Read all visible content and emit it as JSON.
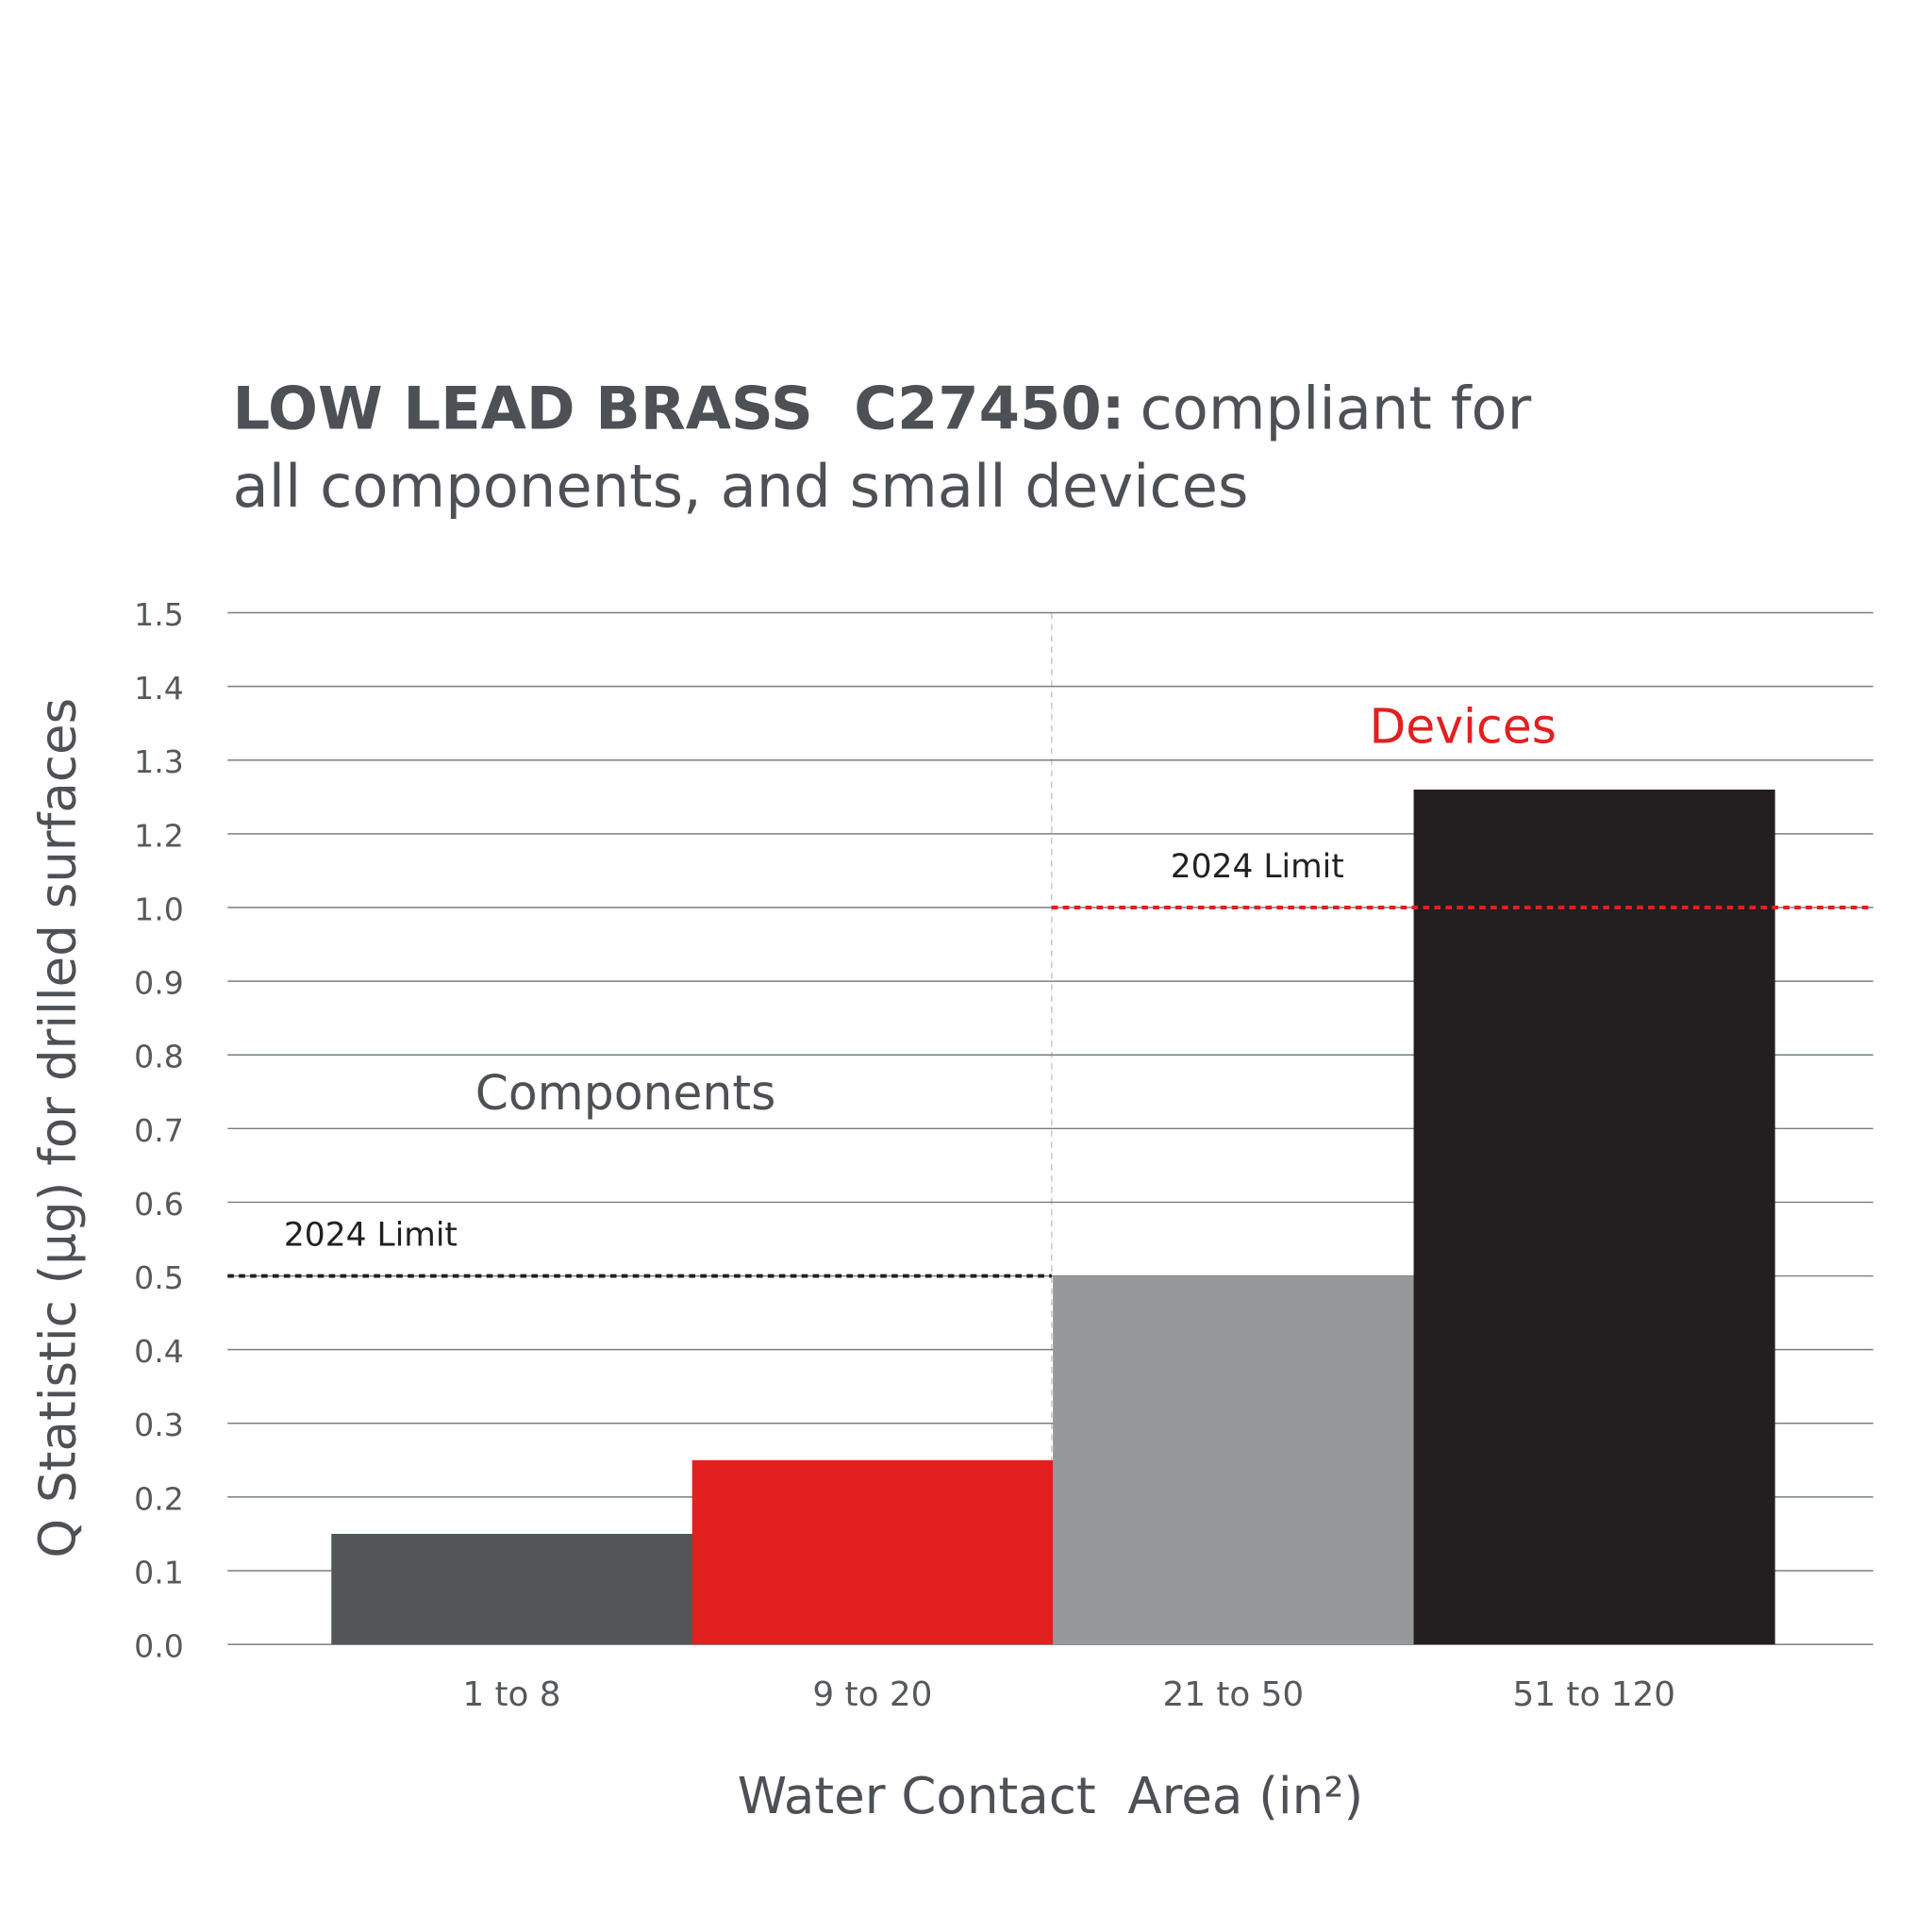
{
  "chart_data": {
    "type": "bar",
    "title": {
      "bold": "LOW LEAD BRASS  C27450:",
      "lines": [
        "compliant for",
        "all components, and small devices"
      ]
    },
    "x_label": "Water Contact  Area (in²)",
    "y_label": "Q Statistic (µg) for drilled surfaces",
    "categories": [
      "1 to 8",
      "9 to 20",
      "21 to 50",
      "51 to 120"
    ],
    "values": [
      0.15,
      0.25,
      0.5,
      1.26
    ],
    "colors": [
      "#525659",
      "#e2201f",
      "#97989a",
      "#231f20"
    ],
    "ylim": [
      0,
      1.5
    ],
    "yticks": [
      {
        "value": 0,
        "label": "0.0"
      },
      0.1,
      0.2,
      0.3,
      0.4,
      0.5,
      0.6,
      0.7,
      0.8,
      0.9,
      {
        "value": 1,
        "label": "1.0"
      },
      1.2,
      1.3,
      1.4,
      1.5
    ],
    "grid": true,
    "reference_lines": [
      {
        "label": "2024 Limit",
        "value": 0.5,
        "color": "#231f20"
      },
      {
        "label": "2024 Limit",
        "value": 1,
        "color": "#e2201f"
      }
    ],
    "annotations": [
      {
        "text": "Components",
        "color": "#4d5155"
      },
      {
        "text": "Devices",
        "color": "#e2201f"
      }
    ]
  }
}
